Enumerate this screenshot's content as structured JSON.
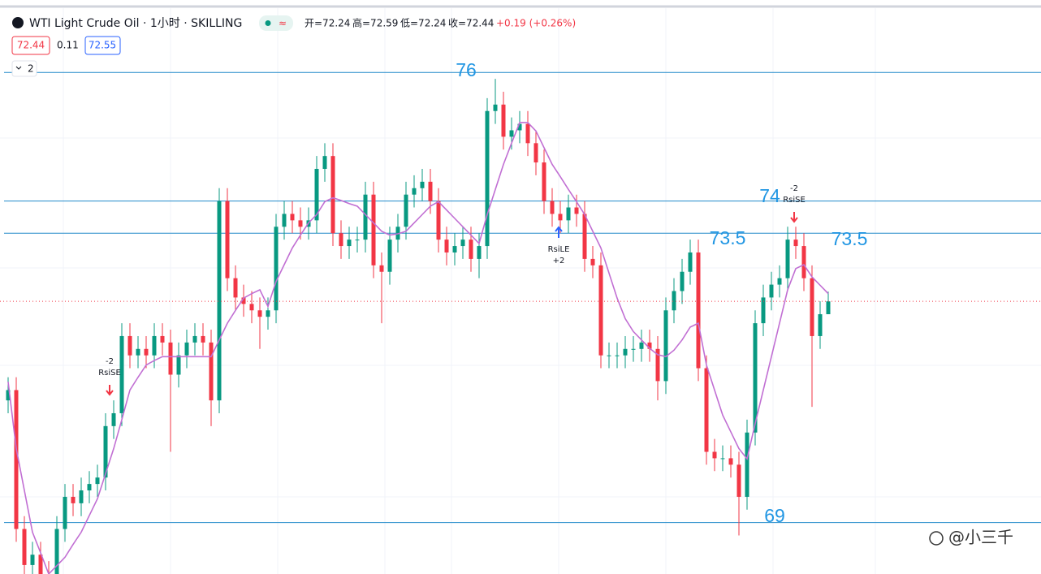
{
  "header": {
    "symbol": "WTI Light Crude Oil · 1小时 · SKILLING",
    "ohlc": [
      "开=72.24",
      "高=72.59",
      "低=72.24",
      "收=72.44"
    ],
    "change": "+0.19 (+0.26%)",
    "bid": "72.44",
    "spread": "0.11",
    "ask": "72.55",
    "indicators": "2"
  },
  "chart_data": {
    "type": "candlestick",
    "open": [
      70.9,
      71.06,
      68.9,
      68.34,
      68.5,
      68.2,
      68.1,
      68.9,
      69.4,
      69.3,
      69.5,
      69.6,
      69.7,
      70.5,
      70.7,
      71.9,
      71.6,
      71.7,
      71.6,
      71.9,
      71.8,
      71.3,
      71.6,
      71.8,
      71.9,
      71.8,
      70.9,
      74.0,
      72.8,
      72.5,
      72.4,
      72.3,
      72.2,
      72.3,
      73.6,
      73.8,
      73.7,
      73.6,
      73.7,
      74.5,
      74.7,
      73.5,
      73.3,
      73.4,
      73.4,
      74.1,
      73.0,
      72.9,
      73.4,
      73.6,
      74.1,
      74.2,
      74.3,
      74.0,
      73.4,
      73.2,
      73.3,
      73.4,
      73.1,
      73.3,
      75.4,
      75.5,
      75.0,
      75.1,
      75.2,
      74.9,
      74.6,
      74.0,
      73.8,
      73.7,
      73.9,
      73.8,
      73.1,
      73.0,
      71.6,
      71.6,
      71.6,
      71.7,
      71.7,
      71.8,
      71.7,
      71.2,
      72.3,
      72.6,
      72.9,
      73.2,
      71.4,
      70.1,
      70.0,
      70.0,
      69.9,
      69.4,
      70.4,
      72.1,
      72.5,
      72.7,
      72.8,
      73.4,
      73.3,
      72.8,
      71.9,
      72.24
    ],
    "high": [
      71.26,
      71.26,
      69.1,
      68.7,
      68.7,
      68.4,
      69.1,
      69.6,
      69.6,
      69.7,
      69.8,
      69.9,
      70.7,
      70.9,
      72.1,
      72.1,
      71.9,
      71.9,
      72.1,
      72.1,
      72.0,
      71.8,
      72.0,
      72.1,
      72.1,
      72.0,
      74.2,
      74.2,
      73.0,
      72.7,
      72.6,
      72.5,
      72.5,
      73.8,
      74.0,
      74.0,
      73.9,
      73.9,
      74.7,
      74.9,
      74.9,
      73.7,
      73.6,
      73.6,
      74.3,
      74.3,
      73.2,
      73.6,
      73.8,
      74.3,
      74.4,
      74.5,
      74.5,
      74.2,
      73.6,
      73.5,
      73.6,
      73.6,
      73.5,
      75.6,
      75.9,
      75.7,
      75.3,
      75.4,
      75.4,
      75.1,
      74.8,
      74.2,
      74.0,
      74.1,
      74.1,
      74.0,
      73.3,
      73.2,
      71.8,
      71.8,
      71.9,
      71.9,
      72.0,
      72.0,
      71.9,
      72.5,
      72.8,
      73.1,
      73.4,
      73.4,
      71.6,
      70.3,
      70.2,
      70.2,
      70.1,
      70.6,
      72.3,
      72.7,
      72.9,
      73.0,
      73.6,
      73.6,
      73.5,
      73.0,
      72.44,
      72.59
    ],
    "low": [
      70.7,
      68.7,
      68.1,
      68.1,
      68.0,
      68.0,
      68.0,
      68.7,
      69.1,
      69.1,
      69.3,
      69.4,
      69.5,
      70.3,
      70.5,
      71.4,
      71.4,
      71.4,
      71.4,
      71.6,
      70.1,
      71.1,
      71.4,
      71.6,
      71.6,
      70.5,
      70.7,
      72.6,
      72.3,
      72.2,
      72.1,
      71.7,
      72.0,
      72.1,
      73.4,
      73.5,
      73.4,
      73.4,
      73.5,
      74.3,
      73.3,
      73.1,
      73.1,
      73.2,
      73.2,
      72.8,
      72.1,
      72.7,
      73.2,
      73.4,
      73.9,
      74.0,
      73.8,
      73.2,
      73.0,
      73.0,
      73.1,
      72.9,
      72.8,
      73.1,
      75.2,
      74.8,
      74.8,
      74.9,
      74.7,
      74.4,
      73.8,
      73.6,
      73.5,
      73.5,
      73.6,
      72.9,
      72.8,
      71.4,
      71.4,
      71.4,
      71.4,
      71.5,
      71.5,
      71.5,
      70.9,
      71.0,
      72.1,
      72.4,
      72.7,
      71.2,
      69.9,
      69.8,
      69.8,
      69.7,
      68.8,
      69.2,
      70.2,
      71.9,
      72.3,
      72.5,
      72.6,
      73.1,
      72.6,
      70.8,
      71.7,
      72.24
    ],
    "close": [
      71.06,
      68.9,
      68.34,
      68.5,
      68.2,
      68.1,
      68.9,
      69.4,
      69.3,
      69.5,
      69.6,
      69.7,
      70.5,
      70.7,
      71.9,
      71.6,
      71.7,
      71.6,
      71.9,
      71.8,
      71.3,
      71.6,
      71.8,
      71.9,
      71.8,
      70.9,
      74.0,
      72.8,
      72.5,
      72.4,
      72.3,
      72.2,
      72.3,
      73.6,
      73.8,
      73.7,
      73.6,
      73.7,
      74.5,
      74.7,
      73.5,
      73.3,
      73.4,
      73.4,
      74.1,
      73.0,
      72.9,
      73.4,
      73.6,
      74.1,
      74.2,
      74.3,
      74.0,
      73.4,
      73.2,
      73.3,
      73.4,
      73.1,
      73.3,
      75.4,
      75.5,
      75.0,
      75.1,
      75.2,
      74.9,
      74.6,
      74.0,
      73.8,
      73.7,
      73.9,
      73.8,
      73.1,
      73.0,
      71.6,
      71.6,
      71.6,
      71.7,
      71.7,
      71.8,
      71.7,
      71.2,
      72.3,
      72.6,
      72.9,
      73.2,
      71.4,
      70.1,
      70.0,
      70.0,
      69.9,
      69.4,
      70.4,
      72.1,
      72.5,
      72.7,
      72.8,
      73.4,
      73.3,
      72.8,
      71.9,
      72.24,
      72.44
    ],
    "up_color": "#089981",
    "down_color": "#f23645",
    "ma": {
      "color": "#c16fd3",
      "values": [
        71.19,
        70.15,
        69.5,
        68.85,
        68.53,
        68.2,
        68.33,
        68.46,
        68.66,
        68.85,
        69.11,
        69.37,
        69.76,
        70.15,
        70.6,
        71.06,
        71.26,
        71.45,
        71.52,
        71.58,
        71.58,
        71.58,
        71.58,
        71.58,
        71.58,
        71.58,
        71.84,
        72.1,
        72.3,
        72.49,
        72.56,
        72.62,
        72.36,
        72.75,
        73.01,
        73.27,
        73.47,
        73.66,
        73.79,
        73.99,
        74.05,
        74.01,
        73.96,
        73.92,
        73.79,
        73.66,
        73.53,
        73.47,
        73.49,
        73.53,
        73.66,
        73.79,
        73.92,
        73.99,
        73.86,
        73.73,
        73.6,
        73.47,
        73.34,
        73.79,
        74.18,
        74.57,
        74.9,
        75.22,
        75.22,
        75.09,
        74.83,
        74.57,
        74.38,
        74.18,
        73.99,
        73.79,
        73.53,
        73.27,
        72.88,
        72.49,
        72.17,
        71.97,
        71.84,
        71.71,
        71.61,
        71.58,
        71.68,
        71.84,
        72.04,
        72.1,
        71.45,
        71.06,
        70.67,
        70.41,
        70.15,
        69.99,
        70.54,
        71.06,
        71.58,
        72.1,
        72.62,
        72.95,
        73.01,
        72.82,
        72.69,
        72.56
      ]
    },
    "ylim": [
      68.2,
      77
    ],
    "levels": [
      76,
      74,
      73.5,
      69
    ],
    "level_color": "#2189c9",
    "signals": [
      {
        "top": "-2",
        "label": "RsiSE"
      },
      {
        "label": "RsiLE",
        "bottom": "+2"
      },
      {
        "top": "-2",
        "label": "RsiSE"
      }
    ],
    "watermark": "@小三千"
  }
}
